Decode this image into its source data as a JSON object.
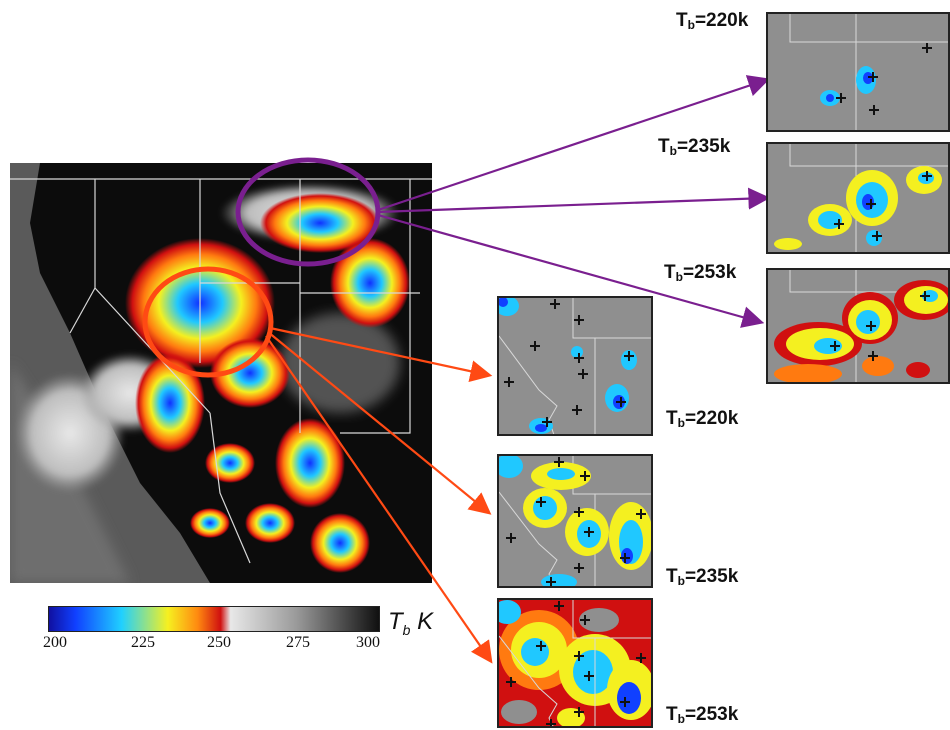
{
  "colors": {
    "purple": "#7a1f8f",
    "orange": "#ff4a14"
  },
  "scale": {
    "ticks": [
      "200",
      "225",
      "250",
      "275",
      "300"
    ],
    "symbol": "T",
    "subscript": "b",
    "unit": "K"
  },
  "panels": {
    "north": [
      {
        "prefix": "T",
        "sub": "b",
        "value": "=220k"
      },
      {
        "prefix": "T",
        "sub": "b",
        "value": "=235k"
      },
      {
        "prefix": "T",
        "sub": "b",
        "value": "=253k"
      }
    ],
    "south": [
      {
        "prefix": "T",
        "sub": "b",
        "value": "=220k"
      },
      {
        "prefix": "T",
        "sub": "b",
        "value": "=235k"
      },
      {
        "prefix": "T",
        "sub": "b",
        "value": "=253k"
      }
    ]
  }
}
